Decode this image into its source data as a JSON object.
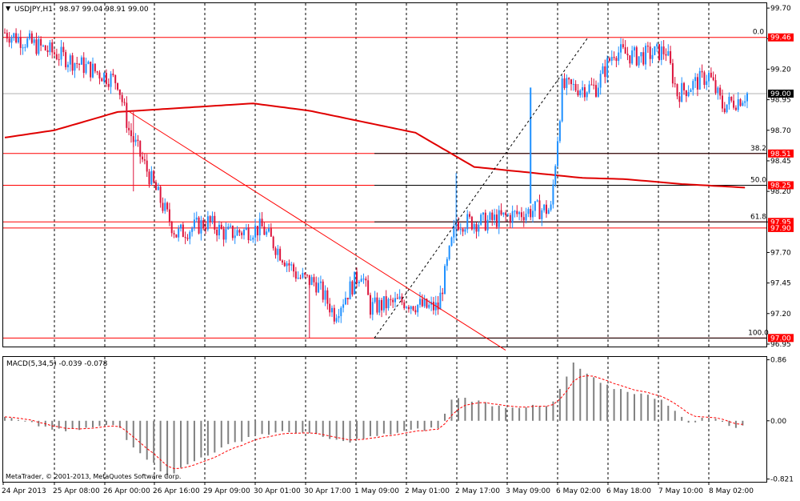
{
  "header": {
    "symbol_label": "USDJPY,H1",
    "ohlc": "98.97 99.04 98.91 99.00"
  },
  "colors": {
    "up": "#1e90ff",
    "down": "#dc143c",
    "ma": "#e00000",
    "hline": "#ff0000",
    "fib": "#000000",
    "trend": "#ff0000",
    "channel": "#000000",
    "macd_hist": "#808080",
    "macd_signal": "#ff0000",
    "bg": "#ffffff",
    "grid": "#000000",
    "tag_bg": "#ff0000",
    "tag_text": "#ffffff"
  },
  "chart_data": [
    {
      "type": "candlestick",
      "title": "USDJPY,H1",
      "x_labels": [
        "24 Apr 2013",
        "25 Apr 08:00",
        "26 Apr 00:00",
        "26 Apr 16:00",
        "29 Apr 09:00",
        "30 Apr 01:00",
        "30 Apr 17:00",
        "1 May 09:00",
        "2 May 01:00",
        "2 May 17:00",
        "3 May 09:00",
        "6 May 02:00",
        "6 May 18:00",
        "7 May 10:00",
        "8 May 02:00"
      ],
      "y_ticks": [
        99.7,
        99.45,
        99.2,
        98.95,
        98.7,
        98.45,
        98.2,
        97.95,
        97.7,
        97.45,
        97.2,
        96.95
      ],
      "ylim": [
        96.93,
        99.74
      ],
      "current_price": 99.0,
      "price_tags": [
        {
          "label": "99.46",
          "value": 99.46
        },
        {
          "label": "98.51",
          "value": 98.51
        },
        {
          "label": "98.25",
          "value": 98.25
        },
        {
          "label": "97.95",
          "value": 97.95
        },
        {
          "label": "97.90",
          "value": 97.9
        },
        {
          "label": "97.00",
          "value": 97.0
        }
      ],
      "fibonacci": [
        {
          "label": "0.0",
          "value": 99.46
        },
        {
          "label": "38.2",
          "value": 98.51
        },
        {
          "label": "50.0",
          "value": 98.25
        },
        {
          "label": "61.8",
          "value": 97.95
        },
        {
          "label": "100.0",
          "value": 97.0
        }
      ],
      "anchors": [
        {
          "label": "24 Apr",
          "date": "2013-04-24",
          "value": 99.5
        },
        {
          "label": "25 Apr",
          "date": "2013-04-25",
          "value": 99.3
        },
        {
          "label": "26 Apr 00",
          "date": "2013-04-26",
          "value": 99.1
        },
        {
          "label": "26 Apr 08",
          "date": "2013-04-26",
          "value": 98.7
        },
        {
          "label": "26 Apr 16",
          "date": "2013-04-26",
          "value": 98.0
        },
        {
          "label": "29 Apr 00",
          "date": "2013-04-29",
          "value": 97.85
        },
        {
          "label": "29 Apr 09",
          "date": "2013-04-29",
          "value": 97.95
        },
        {
          "label": "29 Apr 17",
          "date": "2013-04-29",
          "value": 97.85
        },
        {
          "label": "30 Apr 01",
          "date": "2013-04-30",
          "value": 97.9
        },
        {
          "label": "30 Apr 09",
          "date": "2013-04-30",
          "value": 97.5
        },
        {
          "label": "30 Apr 17",
          "date": "2013-04-30",
          "value": 97.45
        },
        {
          "label": "30 Apr 23",
          "date": "2013-04-30",
          "value": 97.2
        },
        {
          "label": "1 May 05",
          "date": "2013-05-01",
          "value": 97.55
        },
        {
          "label": "1 May 09",
          "date": "2013-05-01",
          "value": 97.25
        },
        {
          "label": "1 May 17",
          "date": "2013-05-01",
          "value": 97.3
        },
        {
          "label": "2 May 01",
          "date": "2013-05-02",
          "value": 97.25
        },
        {
          "label": "2 May 05",
          "date": "2013-05-02",
          "value": 97.25
        },
        {
          "label": "2 May 09",
          "date": "2013-05-02",
          "value": 97.95
        },
        {
          "label": "2 May 17",
          "date": "2013-05-02",
          "value": 97.95
        },
        {
          "label": "3 May 05",
          "date": "2013-05-03",
          "value": 98.05
        },
        {
          "label": "3 May 09",
          "date": "2013-05-03",
          "value": 98.05
        },
        {
          "label": "3 May 13",
          "date": "2013-05-03",
          "value": 99.05
        },
        {
          "label": "6 May 00",
          "date": "2013-05-06",
          "value": 99.05
        },
        {
          "label": "6 May 04",
          "date": "2013-05-06",
          "value": 99.35
        },
        {
          "label": "6 May 10",
          "date": "2013-05-06",
          "value": 99.3
        },
        {
          "label": "6 May 18",
          "date": "2013-05-06",
          "value": 99.35
        },
        {
          "label": "7 May 00",
          "date": "2013-05-07",
          "value": 99.0
        },
        {
          "label": "7 May 10",
          "date": "2013-05-07",
          "value": 99.15
        },
        {
          "label": "7 May 17",
          "date": "2013-05-07",
          "value": 98.9
        },
        {
          "label": "8 May 02",
          "date": "2013-05-08",
          "value": 98.95
        },
        {
          "label": "8 May 06",
          "date": "2013-05-08",
          "value": 99.0
        }
      ],
      "ma_points": [
        {
          "date": "2013-04-24",
          "value": 98.64
        },
        {
          "date": "2013-04-25",
          "value": 98.7
        },
        {
          "date": "2013-04-26",
          "value": 98.85
        },
        {
          "date": "2013-04-29",
          "value": 98.92
        },
        {
          "date": "2013-04-30",
          "value": 98.86
        },
        {
          "date": "2013-05-01",
          "value": 98.68
        },
        {
          "date": "2013-05-02",
          "value": 98.4
        },
        {
          "date": "2013-05-03",
          "value": 98.31
        },
        {
          "date": "2013-05-06",
          "value": 98.3
        },
        {
          "date": "2013-05-07",
          "value": 98.26
        },
        {
          "date": "2013-05-08",
          "value": 98.23
        }
      ]
    },
    {
      "type": "bar",
      "title": "MACD(5,34,5) -0.039 -0.078",
      "y_ticks": [
        0.86,
        0.0,
        -0.821
      ],
      "ylim": [
        -0.86,
        0.9
      ],
      "anchors": [
        {
          "label": "24 Apr",
          "value": 0.05
        },
        {
          "label": "25 Apr 08",
          "value": -0.15
        },
        {
          "label": "26 Apr 00",
          "value": -0.05
        },
        {
          "label": "26 Apr 08",
          "value": -0.3
        },
        {
          "label": "26 Apr 16",
          "value": -0.78
        },
        {
          "label": "27 Apr 20",
          "value": -0.5
        },
        {
          "label": "29 Apr 09",
          "value": -0.2
        },
        {
          "label": "30 Apr 01",
          "value": -0.15
        },
        {
          "label": "30 Apr 17",
          "value": -0.3
        },
        {
          "label": "1 May 09",
          "value": -0.15
        },
        {
          "label": "2 May 01",
          "value": -0.1
        },
        {
          "label": "2 May 09",
          "value": 0.35
        },
        {
          "label": "3 May 05",
          "value": 0.2
        },
        {
          "label": "3 May 09",
          "value": 0.2
        },
        {
          "label": "3 May 17",
          "value": 0.8
        },
        {
          "label": "6 May 02",
          "value": 0.5
        },
        {
          "label": "6 May 18",
          "value": 0.3
        },
        {
          "label": "7 May 06",
          "value": -0.03
        },
        {
          "label": "7 May 10",
          "value": 0.05
        },
        {
          "label": "8 May 02",
          "value": -0.1
        },
        {
          "label": "8 May 06",
          "value": -0.04
        }
      ]
    }
  ],
  "copyright": "MetaTrader, © 2001-2013, MetaQuotes Software Corp."
}
